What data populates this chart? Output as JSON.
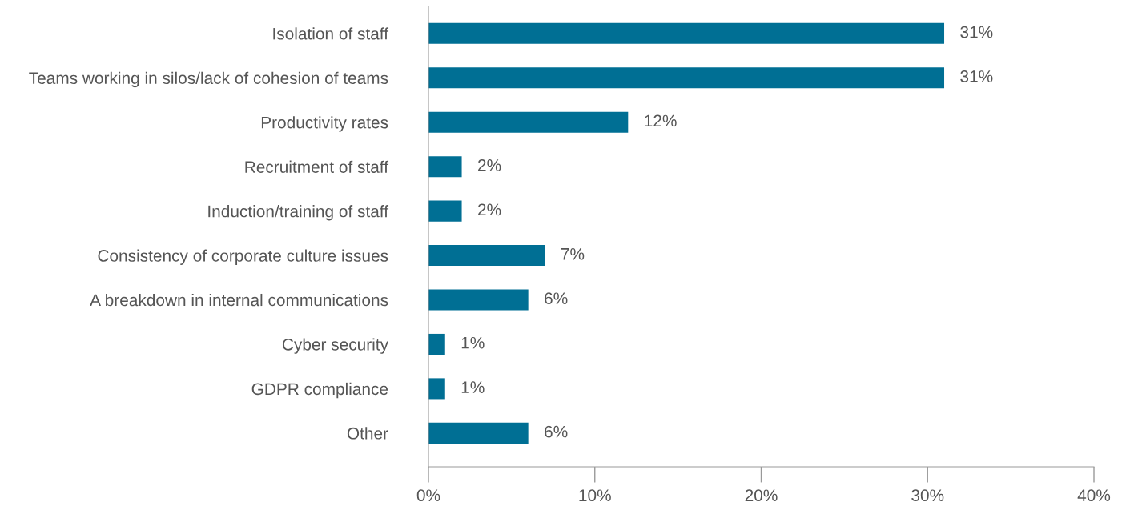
{
  "chart_data": {
    "type": "bar",
    "orientation": "horizontal",
    "categories": [
      "Isolation of staff",
      "Teams working in silos/lack of cohesion of teams",
      "Productivity rates",
      "Recruitment of staff",
      "Induction/training of staff",
      "Consistency of corporate culture issues",
      "A breakdown in internal communications",
      "Cyber security",
      "GDPR compliance",
      "Other"
    ],
    "values": [
      31,
      31,
      12,
      2,
      2,
      7,
      6,
      1,
      1,
      6
    ],
    "value_labels": [
      "31%",
      "31%",
      "12%",
      "2%",
      "2%",
      "7%",
      "6%",
      "1%",
      "1%",
      "6%"
    ],
    "color": "#006f94",
    "xlim": [
      0,
      40
    ],
    "xticks": [
      {
        "value": 0,
        "label": "0%"
      },
      {
        "value": 10,
        "label": "10%"
      },
      {
        "value": 20,
        "label": "20%"
      },
      {
        "value": 30,
        "label": "30%"
      },
      {
        "value": 40,
        "label": "40%"
      }
    ],
    "grid": false,
    "legend": false
  }
}
